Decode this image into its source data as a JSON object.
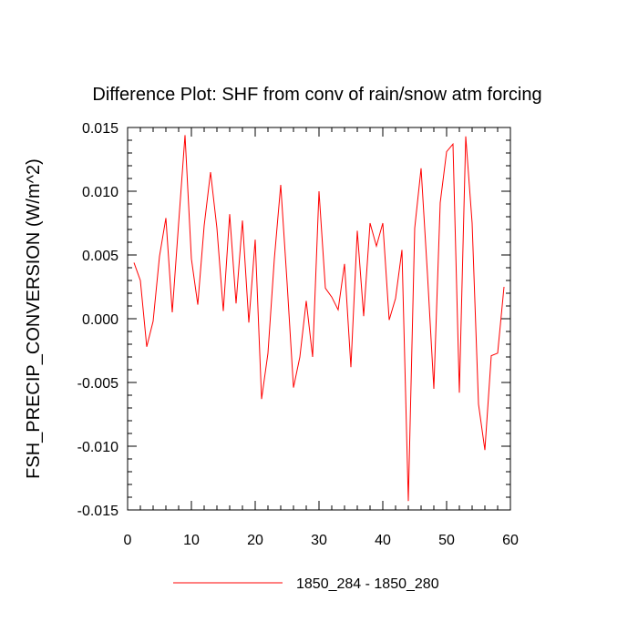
{
  "chart_data": {
    "type": "line",
    "title": "Difference Plot: SHF from conv of rain/snow atm forcing",
    "xlabel": "",
    "ylabel": "FSH_PRECIP_CONVERSION  (W/m^2)",
    "xlim": [
      0,
      60
    ],
    "ylim": [
      -0.015,
      0.015
    ],
    "x_ticks": [
      0,
      10,
      20,
      30,
      40,
      50,
      60
    ],
    "x_tick_labels": [
      "0",
      "10",
      "20",
      "30",
      "40",
      "50",
      "60"
    ],
    "y_ticks": [
      0.015,
      0.01,
      0.005,
      0,
      -0.005,
      -0.01,
      -0.015
    ],
    "y_tick_labels": [
      "0.015",
      "0.010",
      "0.005",
      "0.000",
      "-0.005",
      "-0.010",
      "-0.015"
    ],
    "grid": false,
    "legend_position": "bottom-center",
    "series": [
      {
        "name": "1850_284 - 1850_280",
        "color": "#ff0000",
        "x": [
          1,
          2,
          3,
          4,
          5,
          6,
          7,
          8,
          9,
          10,
          11,
          12,
          13,
          14,
          15,
          16,
          17,
          18,
          19,
          20,
          21,
          22,
          23,
          24,
          25,
          26,
          27,
          28,
          29,
          30,
          31,
          32,
          33,
          34,
          35,
          36,
          37,
          38,
          39,
          40,
          41,
          42,
          43,
          44,
          45,
          46,
          47,
          48,
          49,
          50,
          51,
          52,
          53,
          54,
          55,
          56,
          57,
          58,
          59
        ],
        "values": [
          0.0044,
          0.003,
          -0.0022,
          -0.0002,
          0.0049,
          0.0079,
          0.0005,
          0.0075,
          0.0144,
          0.0047,
          0.0011,
          0.0073,
          0.0115,
          0.0071,
          0.0006,
          0.0082,
          0.0012,
          0.0077,
          -0.0003,
          0.0062,
          -0.0063,
          -0.0027,
          0.0047,
          0.0105,
          0.0028,
          -0.0054,
          -0.003,
          0.0014,
          -0.003,
          0.01,
          0.0024,
          0.0017,
          0.0007,
          0.0043,
          -0.0038,
          0.0069,
          0.0002,
          0.0075,
          0.0057,
          0.0075,
          -0.0001,
          0.0016,
          0.0054,
          -0.0143,
          0.0071,
          0.0118,
          0.0035,
          -0.0055,
          0.0091,
          0.0131,
          0.0137,
          -0.0058,
          0.0143,
          0.0075,
          -0.0067,
          -0.0103,
          -0.0029,
          -0.0027,
          0.0025
        ]
      }
    ]
  }
}
